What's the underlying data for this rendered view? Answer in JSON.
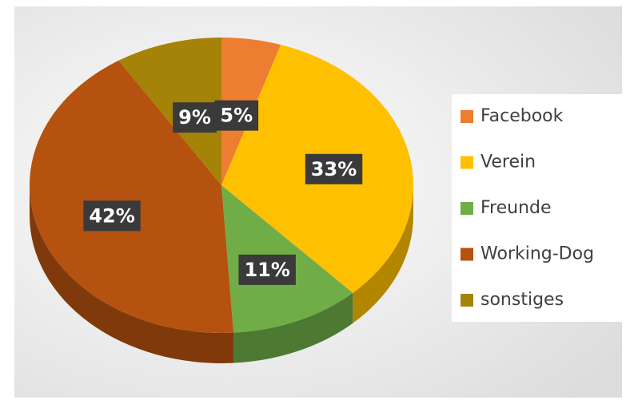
{
  "chart_data": {
    "type": "pie",
    "categories": [
      "Facebook",
      "Verein",
      "Freunde",
      "Working-Dog",
      "sonstiges"
    ],
    "values": [
      5,
      33,
      11,
      42,
      9
    ],
    "value_labels": [
      "5%",
      "33%",
      "11%",
      "42%",
      "9%"
    ],
    "colors": [
      "#ed7d31",
      "#ffc000",
      "#70ad47",
      "#b5520f",
      "#a58308"
    ],
    "legend": "right"
  }
}
